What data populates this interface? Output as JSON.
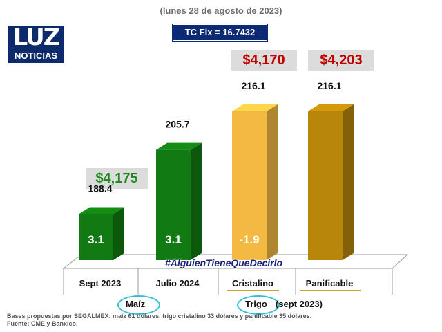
{
  "subtitle": "(lunes 28 de agosto de 2023)",
  "tc_fix": "TC Fix = 16.7432",
  "logo": {
    "big": "LUZ",
    "small": "NOTICIAS"
  },
  "prices": [
    {
      "text": "$4,175",
      "color": "#1f8a1f"
    },
    {
      "text": "$4,170",
      "color": "#c00000"
    },
    {
      "text": "$4,203",
      "color": "#c00000"
    }
  ],
  "hashtag": "#AlguienTieneQueDecirlo",
  "groups": {
    "maiz": "Maíz",
    "trigo": "Trigo",
    "trigo_suffix": "(sept 2023)"
  },
  "footer": {
    "line1": "Bases propuestas por SEGALMEX: maíz 61 dólares, trigo cristalino 33 dólares y panificable 35 dólares.",
    "line2": "Fuente: CME y Banxico."
  },
  "chart_data": {
    "type": "bar",
    "categories": [
      "Sept 2023",
      "Julio 2024",
      "Cristalino",
      "Panificable"
    ],
    "values": [
      188.4,
      205.7,
      216.1,
      216.1
    ],
    "value_labels": [
      "188.4",
      "205.7",
      "216.1",
      "216.1"
    ],
    "inner_labels": [
      "3.1",
      "3.1",
      "-1.9",
      ""
    ],
    "colors": [
      "#127a12",
      "#127a12",
      "#f4b942",
      "#b8860b"
    ],
    "ylim": [
      176,
      217
    ]
  }
}
